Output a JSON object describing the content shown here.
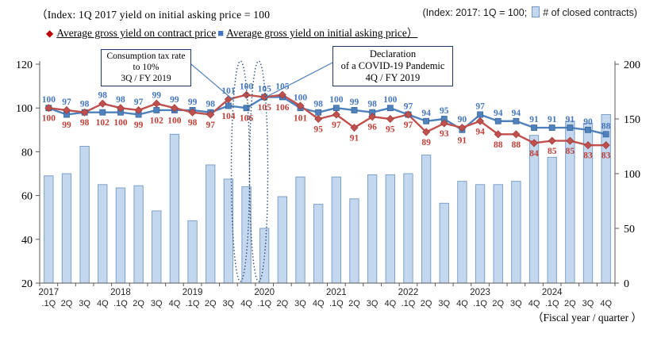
{
  "header": {
    "left_line1": "（Index: 1Q 2017 yield on initial asking price = 100",
    "legend_contract": "Average gross yield on contract price",
    "legend_asking": "Average gross yield on initial asking price）",
    "right_prefix": "(Index: 2017: 1Q = 100;",
    "right_suffix": "# of closed contracts)"
  },
  "annotations": {
    "tax": {
      "line1": "Consumption tax rate",
      "line2": "to 10%",
      "line3": "3Q / FY 2019"
    },
    "covid": {
      "line1": "Declaration",
      "line2": "of a COVID-19 Pandemic",
      "line3": "4Q / FY 2019"
    }
  },
  "axes": {
    "left_ticks": [
      120,
      100,
      80,
      60,
      40,
      20
    ],
    "right_ticks": [
      200,
      150,
      100,
      50,
      0
    ],
    "years": [
      "2017",
      "2018",
      "2019",
      "2020",
      "2021",
      "2022",
      "2023",
      "2024"
    ],
    "quarter_labels": [
      ".1Q",
      "2Q",
      "3Q",
      "4Q"
    ],
    "x_axis_caption": "（Fiscal year / quarter ）"
  },
  "chart_data": {
    "type": "combo (bar + 2 lines)",
    "categories": [
      "2017 1Q",
      "2017 2Q",
      "2017 3Q",
      "2017 4Q",
      "2018 1Q",
      "2018 2Q",
      "2018 3Q",
      "2018 4Q",
      "2019 1Q",
      "2019 2Q",
      "2019 3Q",
      "2019 4Q",
      "2020 1Q",
      "2020 2Q",
      "2020 3Q",
      "2020 4Q",
      "2021 1Q",
      "2021 2Q",
      "2021 3Q",
      "2021 4Q",
      "2022 1Q",
      "2022 2Q",
      "2022 3Q",
      "2022 4Q",
      "2023 1Q",
      "2023 2Q",
      "2023 3Q",
      "2023 4Q",
      "2024 1Q",
      "2024 2Q",
      "2024 3Q",
      "2024 4Q"
    ],
    "left_axis": {
      "min": 20,
      "max": 120
    },
    "right_axis": {
      "min": 0,
      "max": 200
    },
    "series": [
      {
        "name": "Average gross yield on contract price",
        "type": "line",
        "marker": "diamond",
        "axis": "left",
        "color": "#c0504d",
        "values": [
          100,
          99,
          98,
          102,
          100,
          99,
          102,
          100,
          98,
          97,
          104,
          106,
          105,
          106,
          101,
          95,
          97,
          91,
          96,
          95,
          97,
          89,
          93,
          91,
          94,
          88,
          88,
          84,
          85,
          85,
          83,
          83
        ]
      },
      {
        "name": "Average gross yield on initial asking price",
        "type": "line",
        "marker": "square",
        "axis": "left",
        "color": "#4f81bd",
        "values": [
          100,
          97,
          98,
          98,
          98,
          97,
          99,
          99,
          99,
          98,
          101,
          100,
          105,
          105,
          100,
          98,
          100,
          99,
          98,
          100,
          97,
          94,
          95,
          90,
          97,
          94,
          94,
          91,
          91,
          91,
          90,
          88
        ]
      },
      {
        "name": "# of closed contracts",
        "type": "bar",
        "axis": "right",
        "color": "#c3d7ee",
        "values_estimated": true,
        "values": [
          98,
          100,
          125,
          90,
          87,
          89,
          66,
          136,
          57,
          108,
          95,
          88,
          50,
          79,
          97,
          72,
          97,
          77,
          99,
          99,
          100,
          117,
          73,
          93,
          90,
          90,
          93,
          135,
          115,
          148,
          146,
          154
        ]
      }
    ],
    "legend_position": "top",
    "grid": false
  }
}
